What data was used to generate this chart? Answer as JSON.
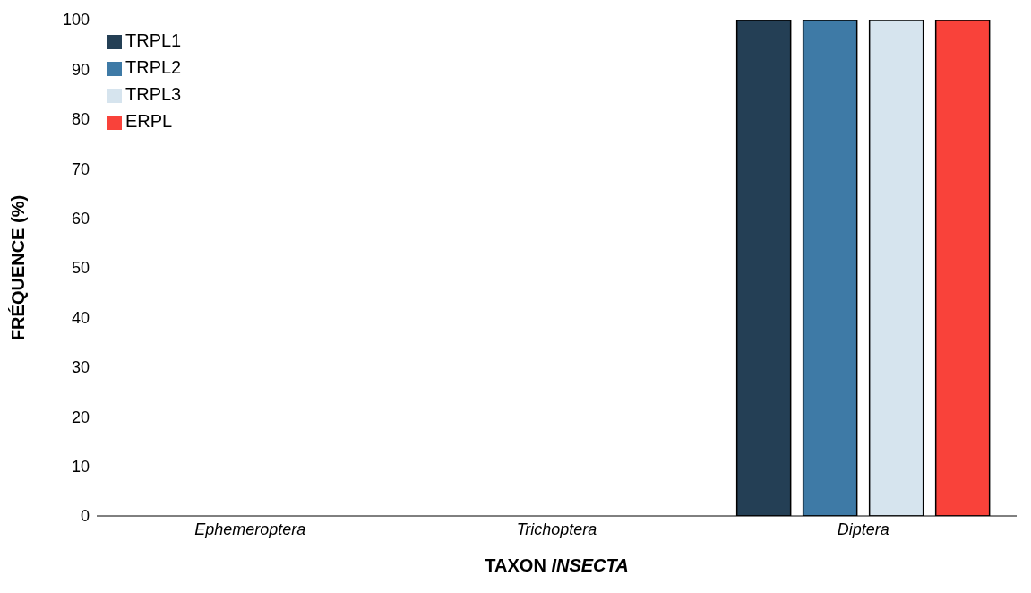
{
  "chart_data": {
    "type": "bar",
    "xlabel": "TAXON INSECTA",
    "ylabel": "FRÉQUENCE (%)",
    "categories": [
      "Ephemeroptera",
      "Trichoptera",
      "Diptera"
    ],
    "series": [
      {
        "name": "TRPL1",
        "color": "#243f55",
        "values": [
          0,
          0,
          100
        ]
      },
      {
        "name": "TRPL2",
        "color": "#3e7aa6",
        "values": [
          0,
          0,
          100
        ]
      },
      {
        "name": "TRPL3",
        "color": "#d6e4ee",
        "values": [
          0,
          0,
          100
        ]
      },
      {
        "name": "ERPL",
        "color": "#f9423a",
        "values": [
          0,
          0,
          100
        ]
      }
    ],
    "ylim": [
      0,
      100
    ],
    "yticks": [
      0,
      10,
      20,
      30,
      40,
      50,
      60,
      70,
      80,
      90,
      100
    ],
    "legend": "top left"
  }
}
